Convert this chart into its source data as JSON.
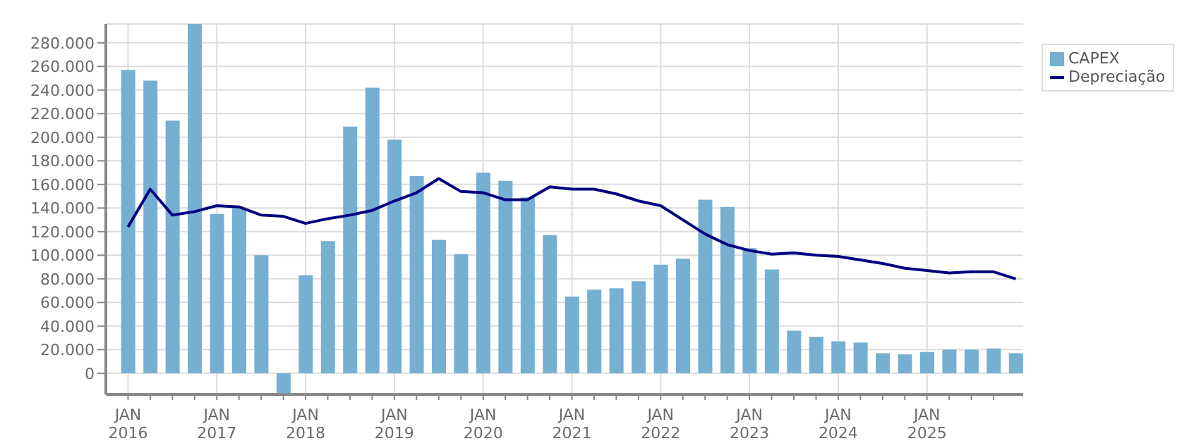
{
  "chart_data": {
    "type": "bar",
    "x": [
      "2016-01",
      "2016-04",
      "2016-07",
      "2016-10",
      "2017-01",
      "2017-04",
      "2017-07",
      "2017-10",
      "2018-01",
      "2018-04",
      "2018-07",
      "2018-10",
      "2019-01",
      "2019-04",
      "2019-07",
      "2019-10",
      "2020-01",
      "2020-04",
      "2020-07",
      "2020-10",
      "2021-01",
      "2021-04",
      "2021-07",
      "2021-10",
      "2022-01",
      "2022-04",
      "2022-07",
      "2022-10",
      "2023-01",
      "2023-04",
      "2023-07",
      "2023-10",
      "2024-01",
      "2024-04",
      "2024-07",
      "2024-10",
      "2025-01",
      "2025-04",
      "2025-07",
      "2025-10",
      "2026-01"
    ],
    "series": [
      {
        "name": "CAPEX",
        "color": "#75afd2",
        "values": [
          257000,
          248000,
          214000,
          296000,
          135000,
          140000,
          100000,
          -18000,
          83000,
          112000,
          209000,
          242000,
          198000,
          167000,
          113000,
          101000,
          170000,
          163000,
          149000,
          117000,
          65000,
          71000,
          72000,
          78000,
          92000,
          97000,
          147000,
          141000,
          106000,
          88000,
          36000,
          31000,
          27000,
          26000,
          17000,
          16000,
          18000,
          20000,
          20000,
          21000,
          17000
        ]
      },
      {
        "name": "Depreciação",
        "type": "line",
        "color": "#000080",
        "values": [
          124000,
          156000,
          134000,
          137000,
          142000,
          141000,
          134000,
          133000,
          127000,
          131000,
          134000,
          138000,
          146000,
          153000,
          165000,
          154000,
          153000,
          147000,
          147000,
          158000,
          156000,
          156000,
          152000,
          146000,
          142000,
          130000,
          118000,
          109000,
          104000,
          101000,
          102000,
          100000,
          99000,
          96000,
          93000,
          89000,
          87000,
          85000,
          86000,
          86000,
          80000
        ]
      }
    ],
    "xlim": [
      "2015-10",
      "2026-02"
    ],
    "xticks": [
      {
        "value": "2016-01",
        "label": "JAN 2016"
      },
      {
        "value": "2016-04",
        "label": null
      },
      {
        "value": "2016-07",
        "label": null
      },
      {
        "value": "2016-10",
        "label": null
      },
      {
        "value": "2017-01",
        "label": "JAN 2017"
      },
      {
        "value": "2017-04",
        "label": null
      },
      {
        "value": "2017-07",
        "label": null
      },
      {
        "value": "2017-10",
        "label": null
      },
      {
        "value": "2018-01",
        "label": "JAN 2018"
      },
      {
        "value": "2018-04",
        "label": null
      },
      {
        "value": "2018-07",
        "label": null
      },
      {
        "value": "2018-10",
        "label": null
      },
      {
        "value": "2019-01",
        "label": "JAN 2019"
      },
      {
        "value": "2019-04",
        "label": null
      },
      {
        "value": "2019-07",
        "label": null
      },
      {
        "value": "2019-10",
        "label": null
      },
      {
        "value": "2020-01",
        "label": "JAN 2020"
      },
      {
        "value": "2020-04",
        "label": null
      },
      {
        "value": "2020-07",
        "label": null
      },
      {
        "value": "2020-10",
        "label": null
      },
      {
        "value": "2021-01",
        "label": "JAN 2021"
      },
      {
        "value": "2021-04",
        "label": null
      },
      {
        "value": "2021-07",
        "label": null
      },
      {
        "value": "2021-10",
        "label": null
      },
      {
        "value": "2022-01",
        "label": "JAN 2022"
      },
      {
        "value": "2022-04",
        "label": null
      },
      {
        "value": "2022-07",
        "label": null
      },
      {
        "value": "2022-10",
        "label": null
      },
      {
        "value": "2023-01",
        "label": "JAN 2023"
      },
      {
        "value": "2023-04",
        "label": null
      },
      {
        "value": "2023-07",
        "label": null
      },
      {
        "value": "2023-10",
        "label": null
      },
      {
        "value": "2024-01",
        "label": "JAN 2024"
      },
      {
        "value": "2024-04",
        "label": null
      },
      {
        "value": "2024-07",
        "label": null
      },
      {
        "value": "2024-10",
        "label": null
      },
      {
        "value": "2025-01",
        "label": "JAN 2025"
      },
      {
        "value": "2025-04",
        "label": null
      },
      {
        "value": "2025-07",
        "label": null
      },
      {
        "value": "2025-10",
        "label": null
      }
    ],
    "ylim": [
      -18000,
      296000
    ],
    "yticks": [
      {
        "value": 0,
        "label": "0"
      },
      {
        "value": 20000,
        "label": "20.000"
      },
      {
        "value": 40000,
        "label": "40.000"
      },
      {
        "value": 60000,
        "label": "60.000"
      },
      {
        "value": 80000,
        "label": "80.000"
      },
      {
        "value": 100000,
        "label": "100.000"
      },
      {
        "value": 120000,
        "label": "120.000"
      },
      {
        "value": 140000,
        "label": "140.000"
      },
      {
        "value": 160000,
        "label": "160.000"
      },
      {
        "value": 180000,
        "label": "180.000"
      },
      {
        "value": 200000,
        "label": "200.000"
      },
      {
        "value": 220000,
        "label": "220.000"
      },
      {
        "value": 240000,
        "label": "240.000"
      },
      {
        "value": 260000,
        "label": "260.000"
      },
      {
        "value": 280000,
        "label": "280.000"
      }
    ],
    "grid": true,
    "legend": "top right",
    "marker": "none",
    "line_style": "solid"
  }
}
